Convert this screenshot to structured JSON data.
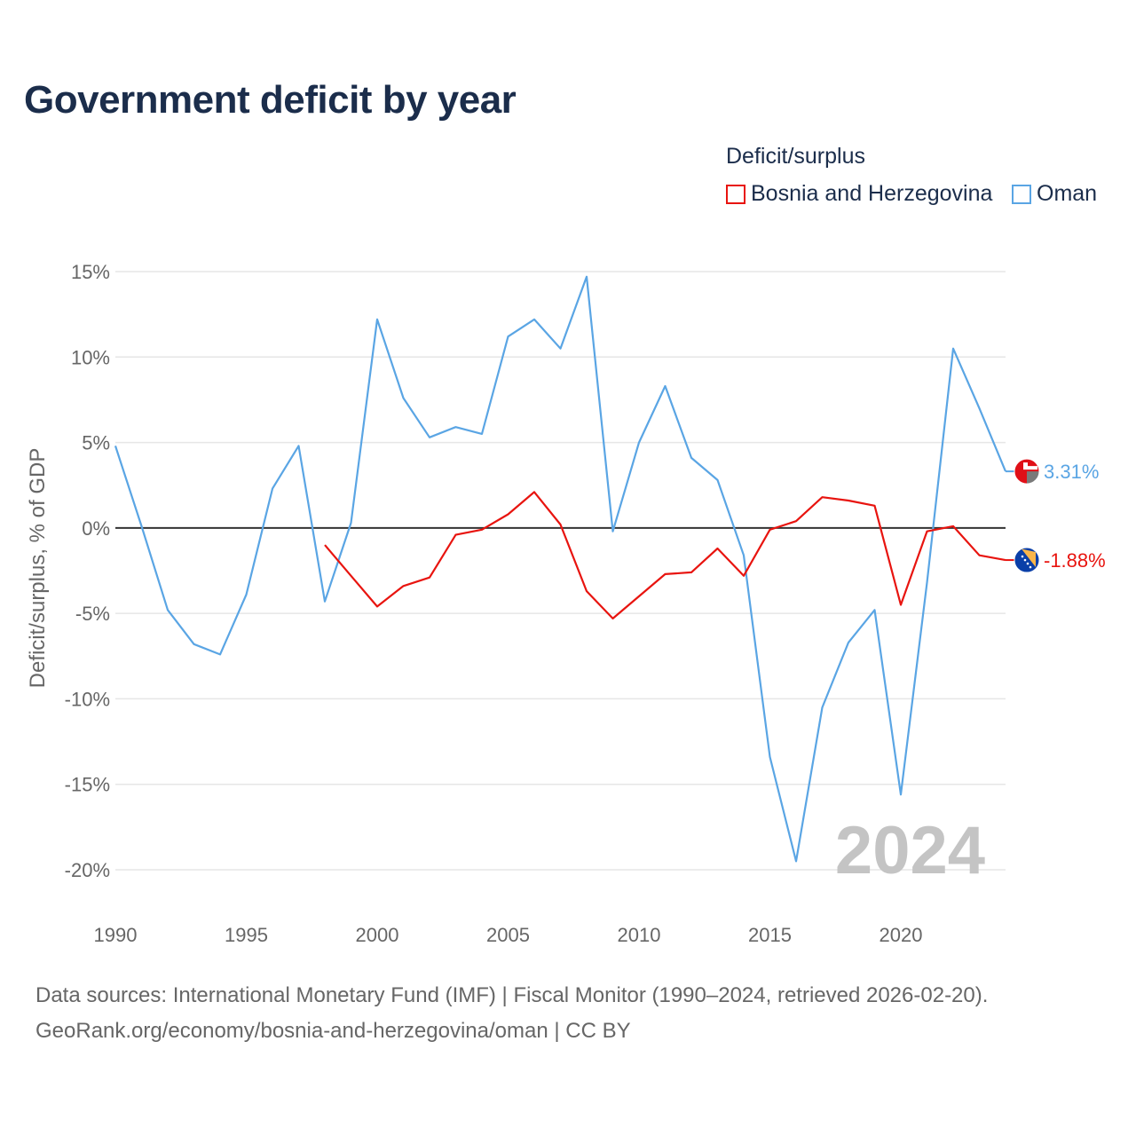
{
  "title": "Government deficit by year",
  "legend": {
    "title": "Deficit/surplus",
    "items": [
      {
        "label": "Bosnia and Herzegovina",
        "color": "#e8140f"
      },
      {
        "label": "Oman",
        "color": "#5aa5e4"
      }
    ]
  },
  "source": {
    "line1": "Data sources: International Monetary Fund (IMF) | Fiscal Monitor (1990–2024, retrieved 2026-02-20).",
    "line2": "GeoRank.org/economy/bosnia-and-herzegovina/oman | CC BY"
  },
  "chart_data": {
    "type": "line",
    "title": "Government deficit by year",
    "xlabel": "",
    "ylabel": "Deficit/surplus, % of GDP",
    "xlim": [
      1990,
      2024
    ],
    "ylim": [
      -20,
      15
    ],
    "x_ticks": [
      "1990",
      "1995",
      "2000",
      "2005",
      "2010",
      "2015",
      "2020"
    ],
    "x_tick_values": [
      1990,
      1995,
      2000,
      2005,
      2010,
      2015,
      2020
    ],
    "y_ticks": [
      "15%",
      "10%",
      "5%",
      "0%",
      "-5%",
      "-10%",
      "-15%",
      "-20%"
    ],
    "y_tick_values": [
      15,
      10,
      5,
      0,
      -5,
      -10,
      -15,
      -20
    ],
    "watermark_year": "2024",
    "series": [
      {
        "name": "Oman",
        "color": "#5aa5e4",
        "end_label": "3.31%",
        "flag": "oman-flag-icon",
        "x": [
          1990,
          1991,
          1992,
          1993,
          1994,
          1995,
          1996,
          1997,
          1998,
          1999,
          2000,
          2001,
          2002,
          2003,
          2004,
          2005,
          2006,
          2007,
          2008,
          2009,
          2010,
          2011,
          2012,
          2013,
          2014,
          2015,
          2016,
          2017,
          2018,
          2019,
          2020,
          2021,
          2022,
          2023,
          2024
        ],
        "values": [
          4.8,
          0.1,
          -4.8,
          -6.8,
          -7.4,
          -3.9,
          2.3,
          4.8,
          -4.3,
          0.3,
          12.2,
          7.6,
          5.3,
          5.9,
          5.5,
          11.2,
          12.2,
          10.5,
          14.7,
          -0.2,
          5.0,
          8.3,
          4.1,
          2.8,
          -1.6,
          -13.4,
          -19.5,
          -10.5,
          -6.7,
          -4.8,
          -15.6,
          -3.2,
          10.5,
          7.0,
          3.31
        ]
      },
      {
        "name": "Bosnia and Herzegovina",
        "color": "#e8140f",
        "end_label": "-1.88%",
        "flag": "bosnia-flag-icon",
        "x": [
          1998,
          1999,
          2000,
          2001,
          2002,
          2003,
          2004,
          2005,
          2006,
          2007,
          2008,
          2009,
          2010,
          2011,
          2012,
          2013,
          2014,
          2015,
          2016,
          2017,
          2018,
          2019,
          2020,
          2021,
          2022,
          2023,
          2024
        ],
        "values": [
          -1.0,
          -2.8,
          -4.6,
          -3.4,
          -2.9,
          -0.4,
          -0.1,
          0.8,
          2.1,
          0.2,
          -3.7,
          -5.3,
          -4.0,
          -2.7,
          -2.6,
          -1.2,
          -2.8,
          -0.1,
          0.4,
          1.8,
          1.6,
          1.3,
          -4.5,
          -0.2,
          0.1,
          -1.6,
          -1.88
        ]
      }
    ]
  }
}
